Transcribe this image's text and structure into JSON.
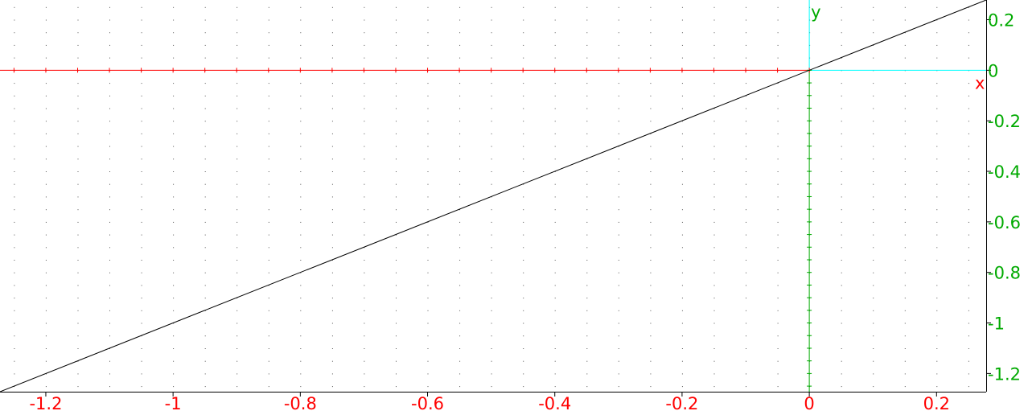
{
  "chart_data": {
    "type": "line",
    "xlim": [
      -1.272,
      0.278
    ],
    "ylim": [
      -1.272,
      0.278
    ],
    "x_ticks": [
      {
        "value": -1.2,
        "label": "-1.2"
      },
      {
        "value": -1.0,
        "label": "-1"
      },
      {
        "value": -0.8,
        "label": "-0.8"
      },
      {
        "value": -0.6,
        "label": "-0.6"
      },
      {
        "value": -0.4,
        "label": "-0.4"
      },
      {
        "value": -0.2,
        "label": "-0.2"
      },
      {
        "value": 0,
        "label": "0"
      },
      {
        "value": 0.2,
        "label": "0.2"
      }
    ],
    "y_ticks": [
      {
        "value": 0.2,
        "label": "0.2"
      },
      {
        "value": 0,
        "label": "0"
      },
      {
        "value": -0.2,
        "label": "-0.2"
      },
      {
        "value": -0.4,
        "label": "-0.4"
      },
      {
        "value": -0.6,
        "label": "-0.6"
      },
      {
        "value": -0.8,
        "label": "-0.8"
      },
      {
        "value": -1.0,
        "label": "-1"
      },
      {
        "value": -1.2,
        "label": "-1.2"
      }
    ],
    "grid_step": 0.05,
    "minor_tick_step": 0.05,
    "series": [
      {
        "x": [
          -1.272,
          0.278
        ],
        "y": [
          -1.272,
          0.278
        ]
      }
    ],
    "xlabel": "x",
    "ylabel": "y",
    "grid": "dots",
    "colors": {
      "x_axis": "#ff0000",
      "y_axis": "#00aa00",
      "unit_vector": "#00ffff",
      "x_tick_labels": "#ff0000",
      "y_tick_labels": "#00aa00",
      "curve": "#000000",
      "grid": "#555555",
      "frame": "#000000"
    }
  }
}
